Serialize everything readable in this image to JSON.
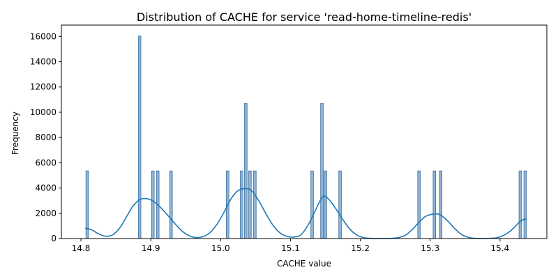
{
  "chart_data": {
    "type": "histogram",
    "title": "Distribution of CACHE for service 'read-home-timeline-redis'",
    "xlabel": "CACHE value",
    "ylabel": "Frequency",
    "xlim": [
      14.772,
      15.467
    ],
    "ylim": [
      0,
      16900
    ],
    "x_ticks": [
      14.8,
      14.9,
      15.0,
      15.1,
      15.2,
      15.3,
      15.4
    ],
    "x_tick_labels": [
      "14.8",
      "14.9",
      "15.0",
      "15.1",
      "15.2",
      "15.3",
      "15.4"
    ],
    "y_ticks": [
      0,
      2000,
      4000,
      6000,
      8000,
      10000,
      12000,
      14000,
      16000
    ],
    "y_tick_labels": [
      "0",
      "2000",
      "4000",
      "6000",
      "8000",
      "10000",
      "12000",
      "14000",
      "16000"
    ],
    "bin_width": 0.0037,
    "bars": [
      {
        "x": 14.809,
        "value": 5350
      },
      {
        "x": 14.884,
        "value": 16050
      },
      {
        "x": 14.903,
        "value": 5350
      },
      {
        "x": 14.91,
        "value": 5350
      },
      {
        "x": 14.929,
        "value": 5350
      },
      {
        "x": 15.01,
        "value": 5350
      },
      {
        "x": 15.03,
        "value": 5350
      },
      {
        "x": 15.036,
        "value": 10700
      },
      {
        "x": 15.042,
        "value": 5350
      },
      {
        "x": 15.049,
        "value": 5350
      },
      {
        "x": 15.131,
        "value": 5350
      },
      {
        "x": 15.145,
        "value": 10700
      },
      {
        "x": 15.15,
        "value": 5350
      },
      {
        "x": 15.171,
        "value": 5350
      },
      {
        "x": 15.284,
        "value": 5350
      },
      {
        "x": 15.306,
        "value": 5350
      },
      {
        "x": 15.315,
        "value": 5350
      },
      {
        "x": 15.429,
        "value": 5350
      },
      {
        "x": 15.436,
        "value": 5350
      }
    ],
    "kde": {
      "x": [
        14.806,
        14.815,
        14.825,
        14.835,
        14.845,
        14.855,
        14.865,
        14.875,
        14.885,
        14.895,
        14.905,
        14.915,
        14.925,
        14.935,
        14.945,
        14.955,
        14.965,
        14.975,
        14.985,
        14.995,
        15.005,
        15.015,
        15.025,
        15.037,
        15.045,
        15.055,
        15.065,
        15.075,
        15.085,
        15.095,
        15.105,
        15.115,
        15.125,
        15.135,
        15.146,
        15.155,
        15.165,
        15.175,
        15.185,
        15.195,
        15.205,
        15.215,
        15.225,
        15.235,
        15.245,
        15.255,
        15.265,
        15.275,
        15.285,
        15.295,
        15.308,
        15.315,
        15.325,
        15.335,
        15.345,
        15.355,
        15.365,
        15.375,
        15.385,
        15.395,
        15.405,
        15.415,
        15.425,
        15.431,
        15.438
      ],
      "y": [
        820,
        700,
        380,
        190,
        280,
        800,
        1700,
        2600,
        3100,
        3150,
        2900,
        2400,
        1800,
        1150,
        580,
        220,
        80,
        150,
        480,
        1150,
        2100,
        3150,
        3800,
        3950,
        3750,
        2950,
        1950,
        1050,
        450,
        170,
        120,
        300,
        1050,
        2150,
        3300,
        3100,
        2350,
        1500,
        750,
        280,
        70,
        20,
        10,
        10,
        20,
        80,
        280,
        750,
        1350,
        1800,
        1950,
        1850,
        1400,
        800,
        320,
        90,
        20,
        10,
        20,
        60,
        250,
        600,
        1150,
        1450,
        1550
      ]
    },
    "colors": {
      "bar_fill": "#8fb4d6",
      "bar_edge": "#3a6e9c",
      "kde_line": "#1f77b4",
      "axis": "#000000"
    }
  }
}
